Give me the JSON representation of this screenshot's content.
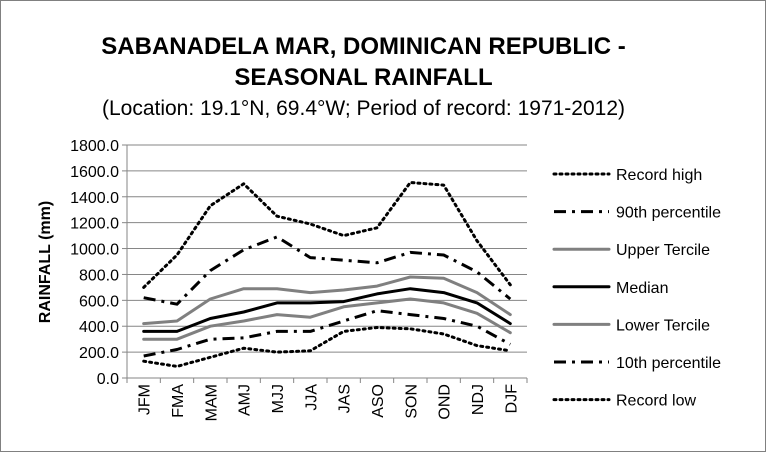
{
  "chart_data": {
    "type": "line",
    "title": "SABANADELA MAR, DOMINICAN REPUBLIC -",
    "title_line2": "SEASONAL RAINFALL",
    "subtitle": "(Location: 19.1°N, 69.4°W; Period of record: 1971-2012)",
    "ylabel": "RAINFALL (mm)",
    "xlabel": "",
    "ylim": [
      0,
      1800
    ],
    "y_ticks": [
      "0.0",
      "200.0",
      "400.0",
      "600.0",
      "800.0",
      "1000.0",
      "1200.0",
      "1400.0",
      "1600.0",
      "1800.0"
    ],
    "categories": [
      "JFM",
      "FMA",
      "MAM",
      "AMJ",
      "MJJ",
      "JJA",
      "JAS",
      "ASO",
      "SON",
      "OND",
      "NDJ",
      "DJF"
    ],
    "grid": true,
    "legend_position": "right",
    "series": [
      {
        "name": "Record high",
        "color": "#000000",
        "style": "dotted",
        "values": [
          700,
          950,
          1330,
          1500,
          1250,
          1190,
          1100,
          1160,
          1510,
          1490,
          1060,
          720
        ]
      },
      {
        "name": "90th percentile",
        "color": "#000000",
        "style": "dashdot",
        "values": [
          620,
          570,
          830,
          990,
          1090,
          930,
          910,
          890,
          970,
          950,
          820,
          610
        ]
      },
      {
        "name": "Upper Tercile",
        "color": "#808080",
        "style": "solid",
        "values": [
          420,
          440,
          610,
          690,
          690,
          660,
          680,
          710,
          780,
          770,
          660,
          490
        ]
      },
      {
        "name": "Median",
        "color": "#000000",
        "style": "solid",
        "values": [
          360,
          360,
          460,
          510,
          580,
          580,
          590,
          650,
          690,
          660,
          580,
          420
        ]
      },
      {
        "name": "Lower Tercile",
        "color": "#808080",
        "style": "solid",
        "values": [
          300,
          300,
          400,
          440,
          490,
          470,
          550,
          580,
          610,
          580,
          500,
          350
        ]
      },
      {
        "name": "10th percentile",
        "color": "#000000",
        "style": "dashdot",
        "values": [
          170,
          220,
          300,
          310,
          360,
          360,
          440,
          520,
          490,
          460,
          400,
          260
        ]
      },
      {
        "name": "Record low",
        "color": "#000000",
        "style": "dotted",
        "values": [
          130,
          90,
          160,
          230,
          200,
          210,
          360,
          390,
          380,
          340,
          250,
          210
        ]
      }
    ]
  }
}
